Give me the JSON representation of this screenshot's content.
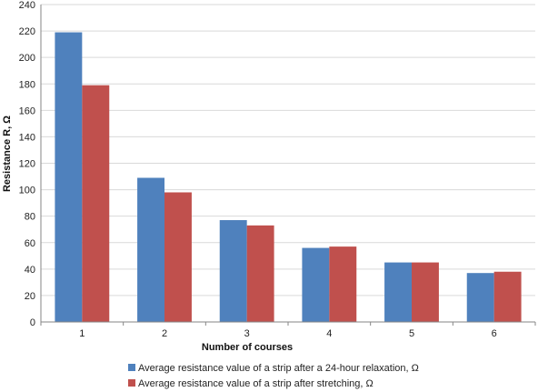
{
  "chart_data": {
    "type": "bar",
    "title": "",
    "xlabel": "Number of courses",
    "ylabel": "Resistance R, Ω",
    "ylim": [
      0,
      240
    ],
    "yticks": [
      0,
      20,
      40,
      60,
      80,
      100,
      120,
      140,
      160,
      180,
      200,
      220,
      240
    ],
    "grid": true,
    "legend_position": "bottom",
    "categories": [
      "1",
      "2",
      "3",
      "4",
      "5",
      "6"
    ],
    "series": [
      {
        "name": "Average resistance value of a strip after a 24-hour relaxation, Ω",
        "color": "#4f81bd",
        "values": [
          219,
          109,
          77,
          56,
          45,
          37
        ]
      },
      {
        "name": "Average resistance value of a strip after stretching, Ω",
        "color": "#c0504d",
        "values": [
          179,
          98,
          73,
          57,
          45,
          38
        ]
      }
    ]
  }
}
